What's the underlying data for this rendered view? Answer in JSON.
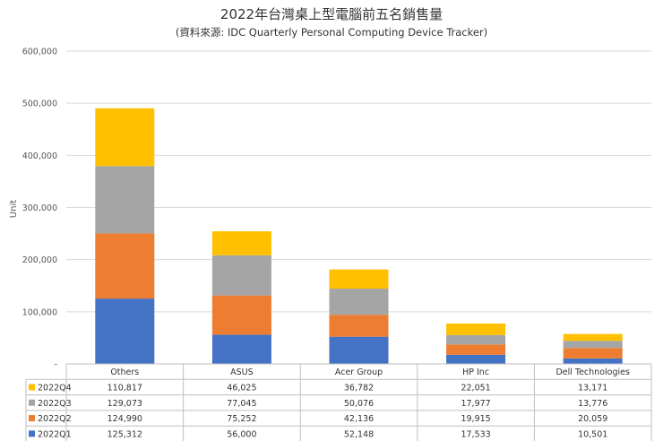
{
  "chart_data": {
    "type": "bar",
    "stacked": true,
    "title": "2022年台灣桌上型電腦前五名銷售量",
    "subtitle": "(資料來源: IDC Quarterly Personal Computing Device Tracker)",
    "ylabel": "Unit",
    "ylim": [
      0,
      600000
    ],
    "yticks": [
      "-",
      "100,000",
      "200,000",
      "300,000",
      "400,000",
      "500,000",
      "600,000"
    ],
    "categories": [
      "Others",
      "ASUS",
      "Acer Group",
      "HP Inc",
      "Dell Technologies"
    ],
    "grid": true,
    "legend": "data-table",
    "series": [
      {
        "name": "2022Q1",
        "color": "#4472c4",
        "values": [
          125312,
          56000,
          52148,
          17533,
          10501
        ],
        "labels": [
          "125,312",
          "56,000",
          "52,148",
          "17,533",
          "10,501"
        ]
      },
      {
        "name": "2022Q2",
        "color": "#ed7d31",
        "values": [
          124990,
          75252,
          42136,
          19915,
          20059
        ],
        "labels": [
          "124,990",
          "75,252",
          "42,136",
          "19,915",
          "20,059"
        ]
      },
      {
        "name": "2022Q3",
        "color": "#a5a5a5",
        "values": [
          129073,
          77045,
          50076,
          17977,
          13776
        ],
        "labels": [
          "129,073",
          "77,045",
          "50,076",
          "17,977",
          "13,776"
        ]
      },
      {
        "name": "2022Q4",
        "color": "#ffc000",
        "values": [
          110817,
          46025,
          36782,
          22051,
          13171
        ],
        "labels": [
          "110,817",
          "46,025",
          "36,782",
          "22,051",
          "13,171"
        ]
      }
    ]
  }
}
